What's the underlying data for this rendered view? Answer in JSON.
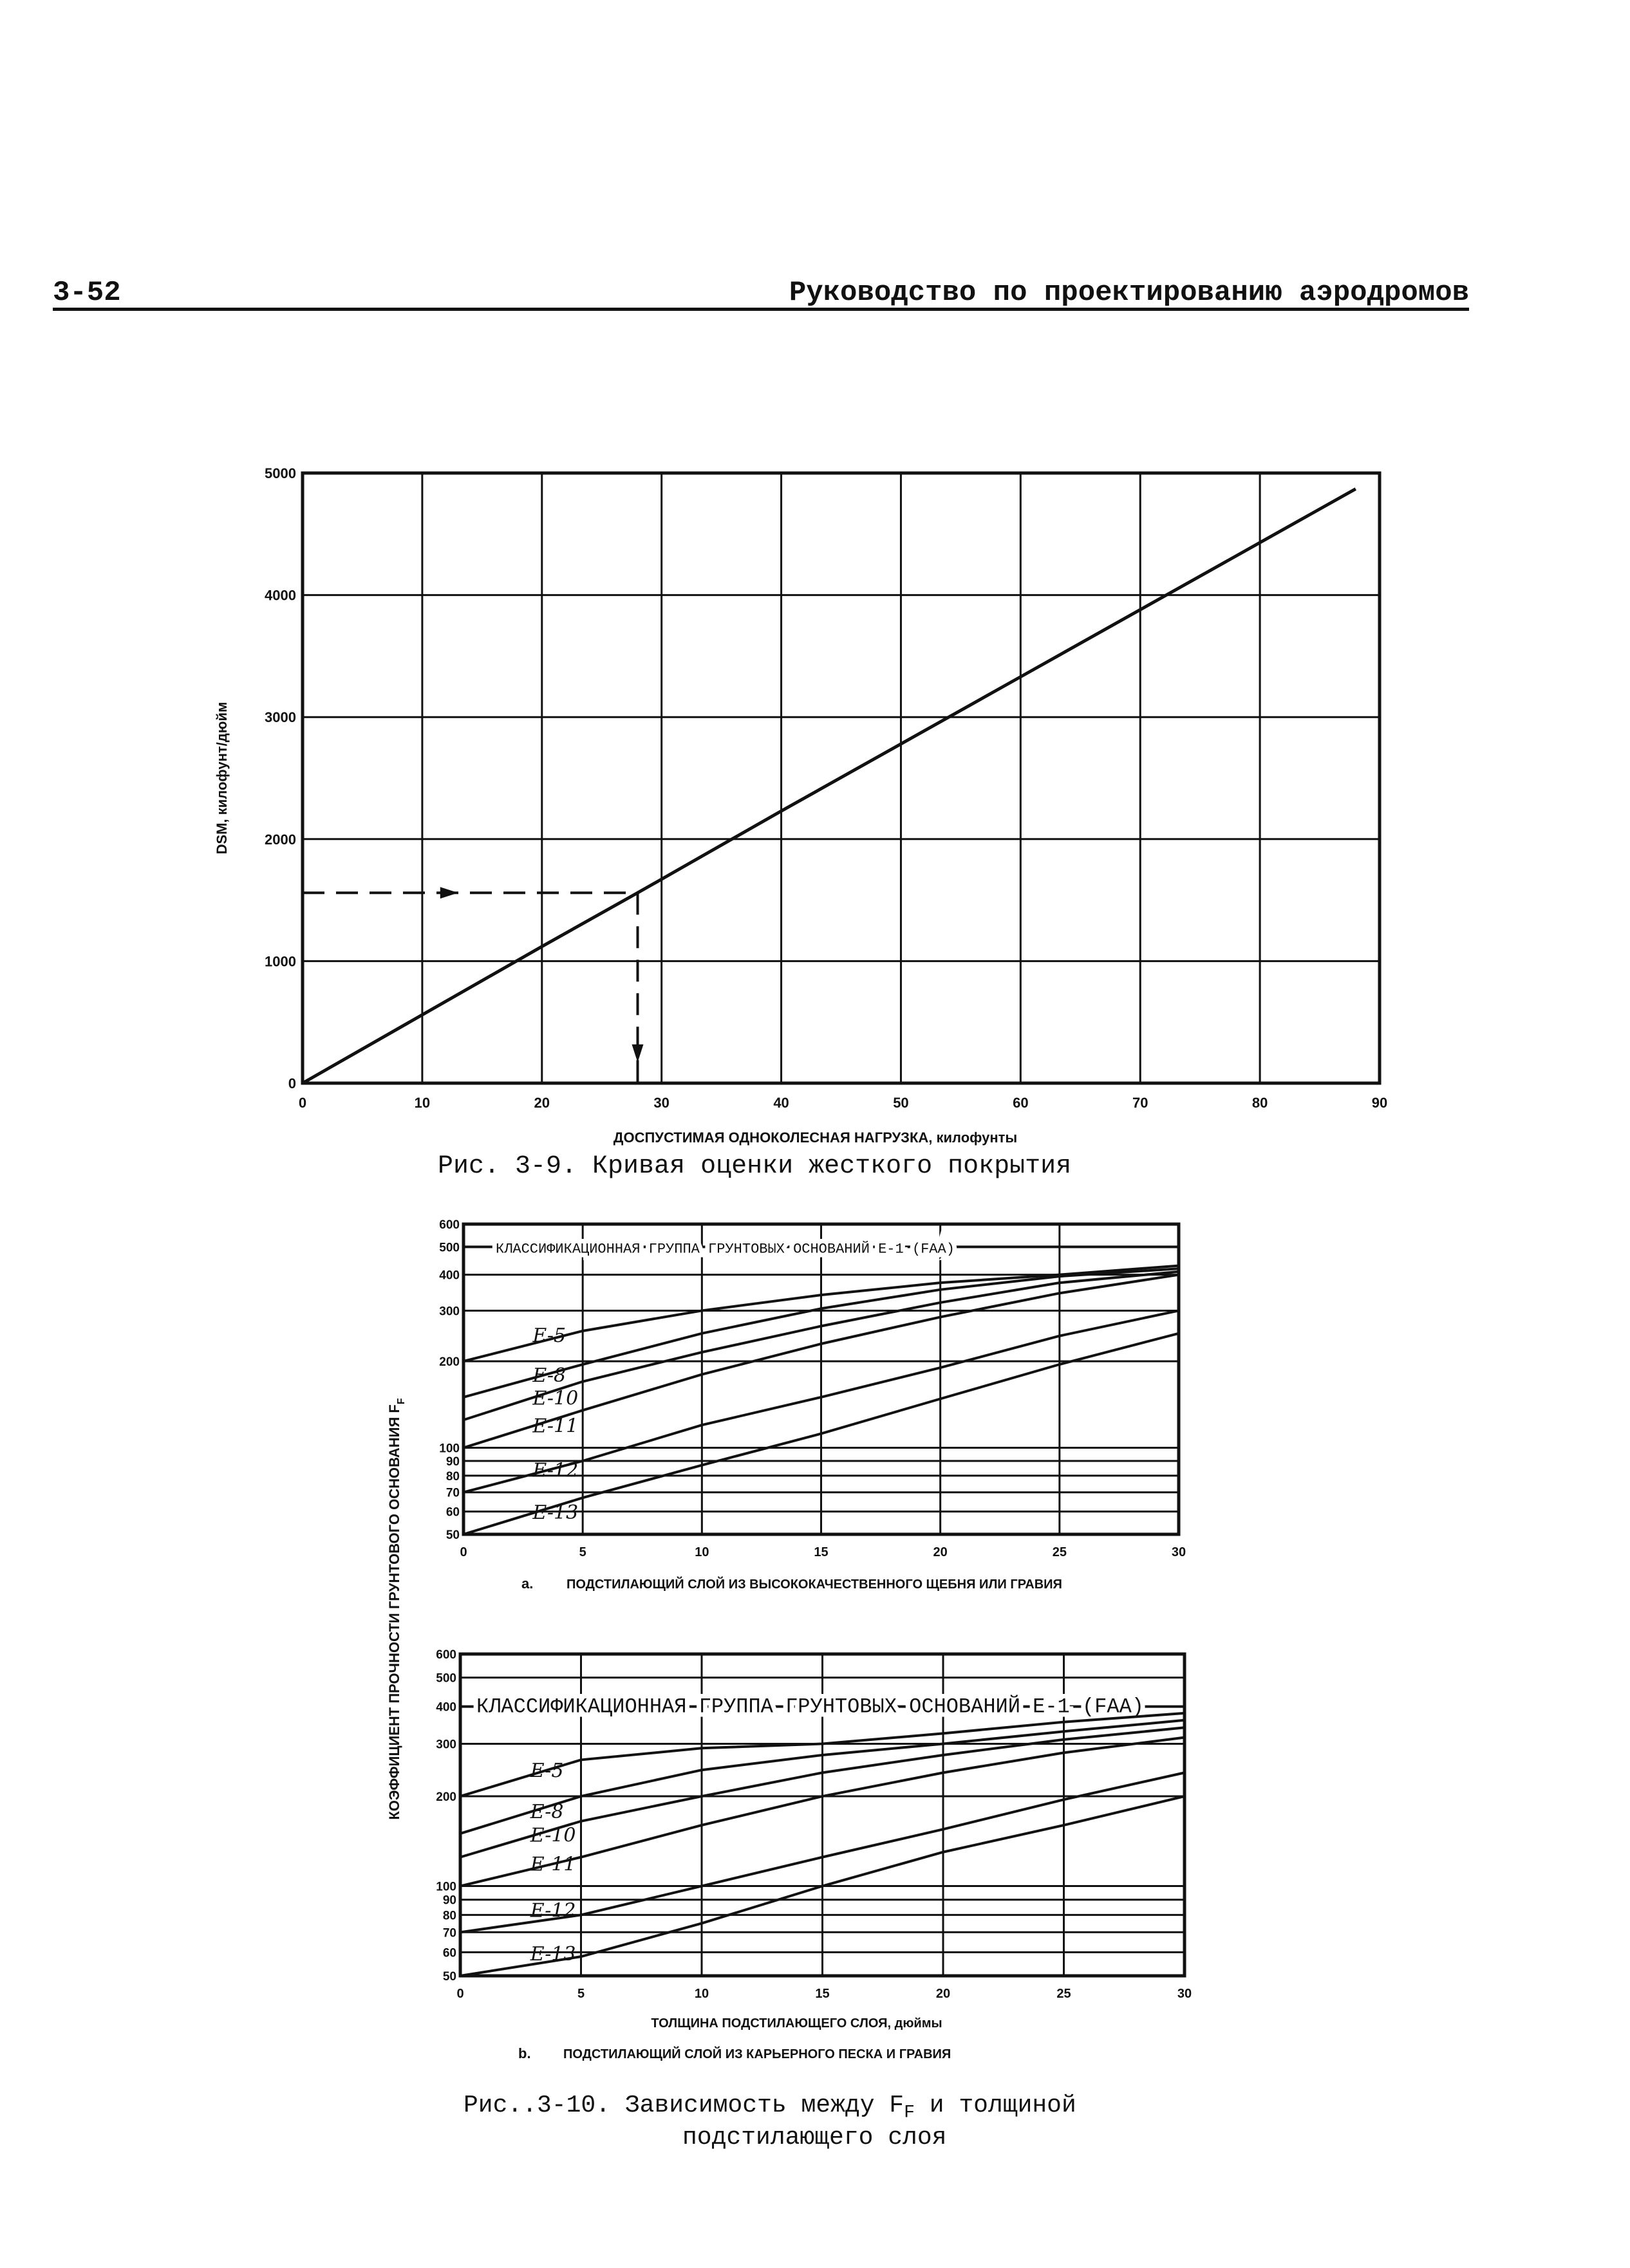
{
  "header": {
    "page_number": "3-52",
    "running_title": "Руководство по проектированию аэродромов"
  },
  "fig39": {
    "caption": "Рис. 3-9. Кривая оценки жесткого покрытия"
  },
  "fig310": {
    "caption_line1": "Рис..3-10. Зависимость между F",
    "caption_sub": "F",
    "caption_line1_end": " и толщиной",
    "caption_line2": "подстилающего слоя",
    "shared_ylabel": "КОЭФФИЦИЕНТ ПРОЧНОСТИ ГРУНТОВОГО ОСНОВАНИЯ F",
    "shared_ylabel_sub": "F"
  },
  "chart_data": [
    {
      "id": "fig3-9",
      "type": "line",
      "title": "Рис. 3-9. Кривая оценки жесткого покрытия",
      "xlabel": "ДОСПУСТИМАЯ ОДНОКОЛЕСНАЯ НАГРУЗКА, килофунты",
      "ylabel": "DSM, килофунт/дюйм",
      "xlim": [
        0,
        90
      ],
      "ylim": [
        0,
        5000
      ],
      "x_ticks": [
        0,
        10,
        20,
        30,
        40,
        50,
        60,
        70,
        80,
        90
      ],
      "x_tick_labels": [
        "0",
        "10",
        "20",
        "30",
        "40",
        "50",
        "60",
        "70",
        "80",
        "90"
      ],
      "y_ticks": [
        0,
        1000,
        2000,
        3000,
        4000,
        5000
      ],
      "y_tick_labels": [
        "0",
        "1000",
        "2000",
        "3000",
        "4000",
        "5000"
      ],
      "grid": true,
      "series": [
        {
          "x": [
            0,
            10,
            20,
            28,
            40,
            50,
            60,
            70,
            80,
            88
          ],
          "y": [
            0,
            560,
            1120,
            1560,
            2230,
            2780,
            3330,
            3880,
            4430,
            4870
          ]
        }
      ],
      "example": {
        "x": 28,
        "y": 1560,
        "style": "dashed-arrows"
      }
    },
    {
      "id": "fig3-10a",
      "type": "line",
      "panel_label": "a.",
      "subtitle": "ПОДСТИЛАЮЩИЙ СЛОЙ ИЗ ВЫСОКОКАЧЕСТВЕННОГО ЩЕБНЯ ИЛИ ГРАВИЯ",
      "xlabel": "",
      "ylabel": "КОЭФФИЦИЕНТ ПРОЧНОСТИ ГРУНТОВОГО ОСНОВАНИЯ F",
      "y_scale": "log",
      "xlim": [
        0,
        30
      ],
      "ylim": [
        50,
        600
      ],
      "x_ticks": [
        0,
        5,
        10,
        15,
        20,
        25,
        30
      ],
      "x_tick_labels": [
        "0",
        "5",
        "10",
        "15",
        "20",
        "25",
        "30"
      ],
      "y_ticks": [
        50,
        60,
        70,
        80,
        90,
        100,
        200,
        300,
        400,
        500,
        600
      ],
      "y_tick_labels": [
        "50",
        "60",
        "70",
        "80",
        "90",
        "100",
        "200",
        "300",
        "400",
        "500",
        "600"
      ],
      "grid": true,
      "annotation": "КЛАССИФИКАЦИОННАЯ ГРУППА ГРУНТОВЫХ ОСНОВАНИЙ E-1 (FAA)",
      "x": [
        0,
        5,
        10,
        15,
        20,
        25,
        30
      ],
      "series": [
        {
          "name": "E-5",
          "values": [
            200,
            255,
            300,
            340,
            375,
            400,
            430
          ]
        },
        {
          "name": "E-8",
          "values": [
            150,
            195,
            250,
            305,
            355,
            395,
            420
          ]
        },
        {
          "name": "E-10",
          "values": [
            125,
            170,
            215,
            265,
            320,
            375,
            410
          ]
        },
        {
          "name": "E-11",
          "values": [
            100,
            135,
            180,
            230,
            285,
            345,
            400
          ]
        },
        {
          "name": "E-12",
          "values": [
            70,
            90,
            120,
            150,
            190,
            245,
            300
          ]
        },
        {
          "name": "E-13",
          "values": [
            50,
            67,
            87,
            112,
            148,
            195,
            250
          ]
        }
      ],
      "reference_line": {
        "name": "E-1",
        "y": 500
      }
    },
    {
      "id": "fig3-10b",
      "type": "line",
      "panel_label": "b.",
      "subtitle": "ПОДСТИЛАЮЩИЙ СЛОЙ ИЗ КАРЬЕРНОГО ПЕСКА И ГРАВИЯ",
      "xlabel": "ТОЛЩИНА ПОДСТИЛАЮЩЕГО СЛОЯ, дюймы",
      "ylabel": "КОЭФФИЦИЕНТ ПРОЧНОСТИ ГРУНТОВОГО ОСНОВАНИЯ F",
      "y_scale": "log",
      "xlim": [
        0,
        30
      ],
      "ylim": [
        50,
        600
      ],
      "x_ticks": [
        0,
        5,
        10,
        15,
        20,
        25,
        30
      ],
      "x_tick_labels": [
        "0",
        "5",
        "10",
        "15",
        "20",
        "25",
        "30"
      ],
      "y_ticks": [
        50,
        60,
        70,
        80,
        90,
        100,
        200,
        300,
        400,
        500,
        600
      ],
      "y_tick_labels": [
        "50",
        "60",
        "70",
        "80",
        "90",
        "100",
        "200",
        "300",
        "400",
        "500",
        "600"
      ],
      "grid": true,
      "annotation": "КЛАССИФИКАЦИОННАЯ ГРУППА ГРУНТОВЫХ ОСНОВАНИЙ E-1 (FAA)",
      "x": [
        0,
        5,
        10,
        15,
        20,
        25,
        30
      ],
      "series": [
        {
          "name": "E-5",
          "values": [
            200,
            265,
            290,
            300,
            325,
            355,
            380
          ]
        },
        {
          "name": "E-8",
          "values": [
            150,
            200,
            245,
            275,
            300,
            330,
            360
          ]
        },
        {
          "name": "E-10",
          "values": [
            125,
            165,
            200,
            240,
            275,
            310,
            340
          ]
        },
        {
          "name": "E-11",
          "values": [
            100,
            125,
            160,
            200,
            240,
            280,
            315
          ]
        },
        {
          "name": "E-12",
          "values": [
            70,
            80,
            100,
            125,
            155,
            195,
            240
          ]
        },
        {
          "name": "E-13",
          "values": [
            50,
            58,
            75,
            100,
            130,
            160,
            200
          ]
        }
      ],
      "reference_line": {
        "name": "E-1",
        "y": 400
      }
    }
  ]
}
